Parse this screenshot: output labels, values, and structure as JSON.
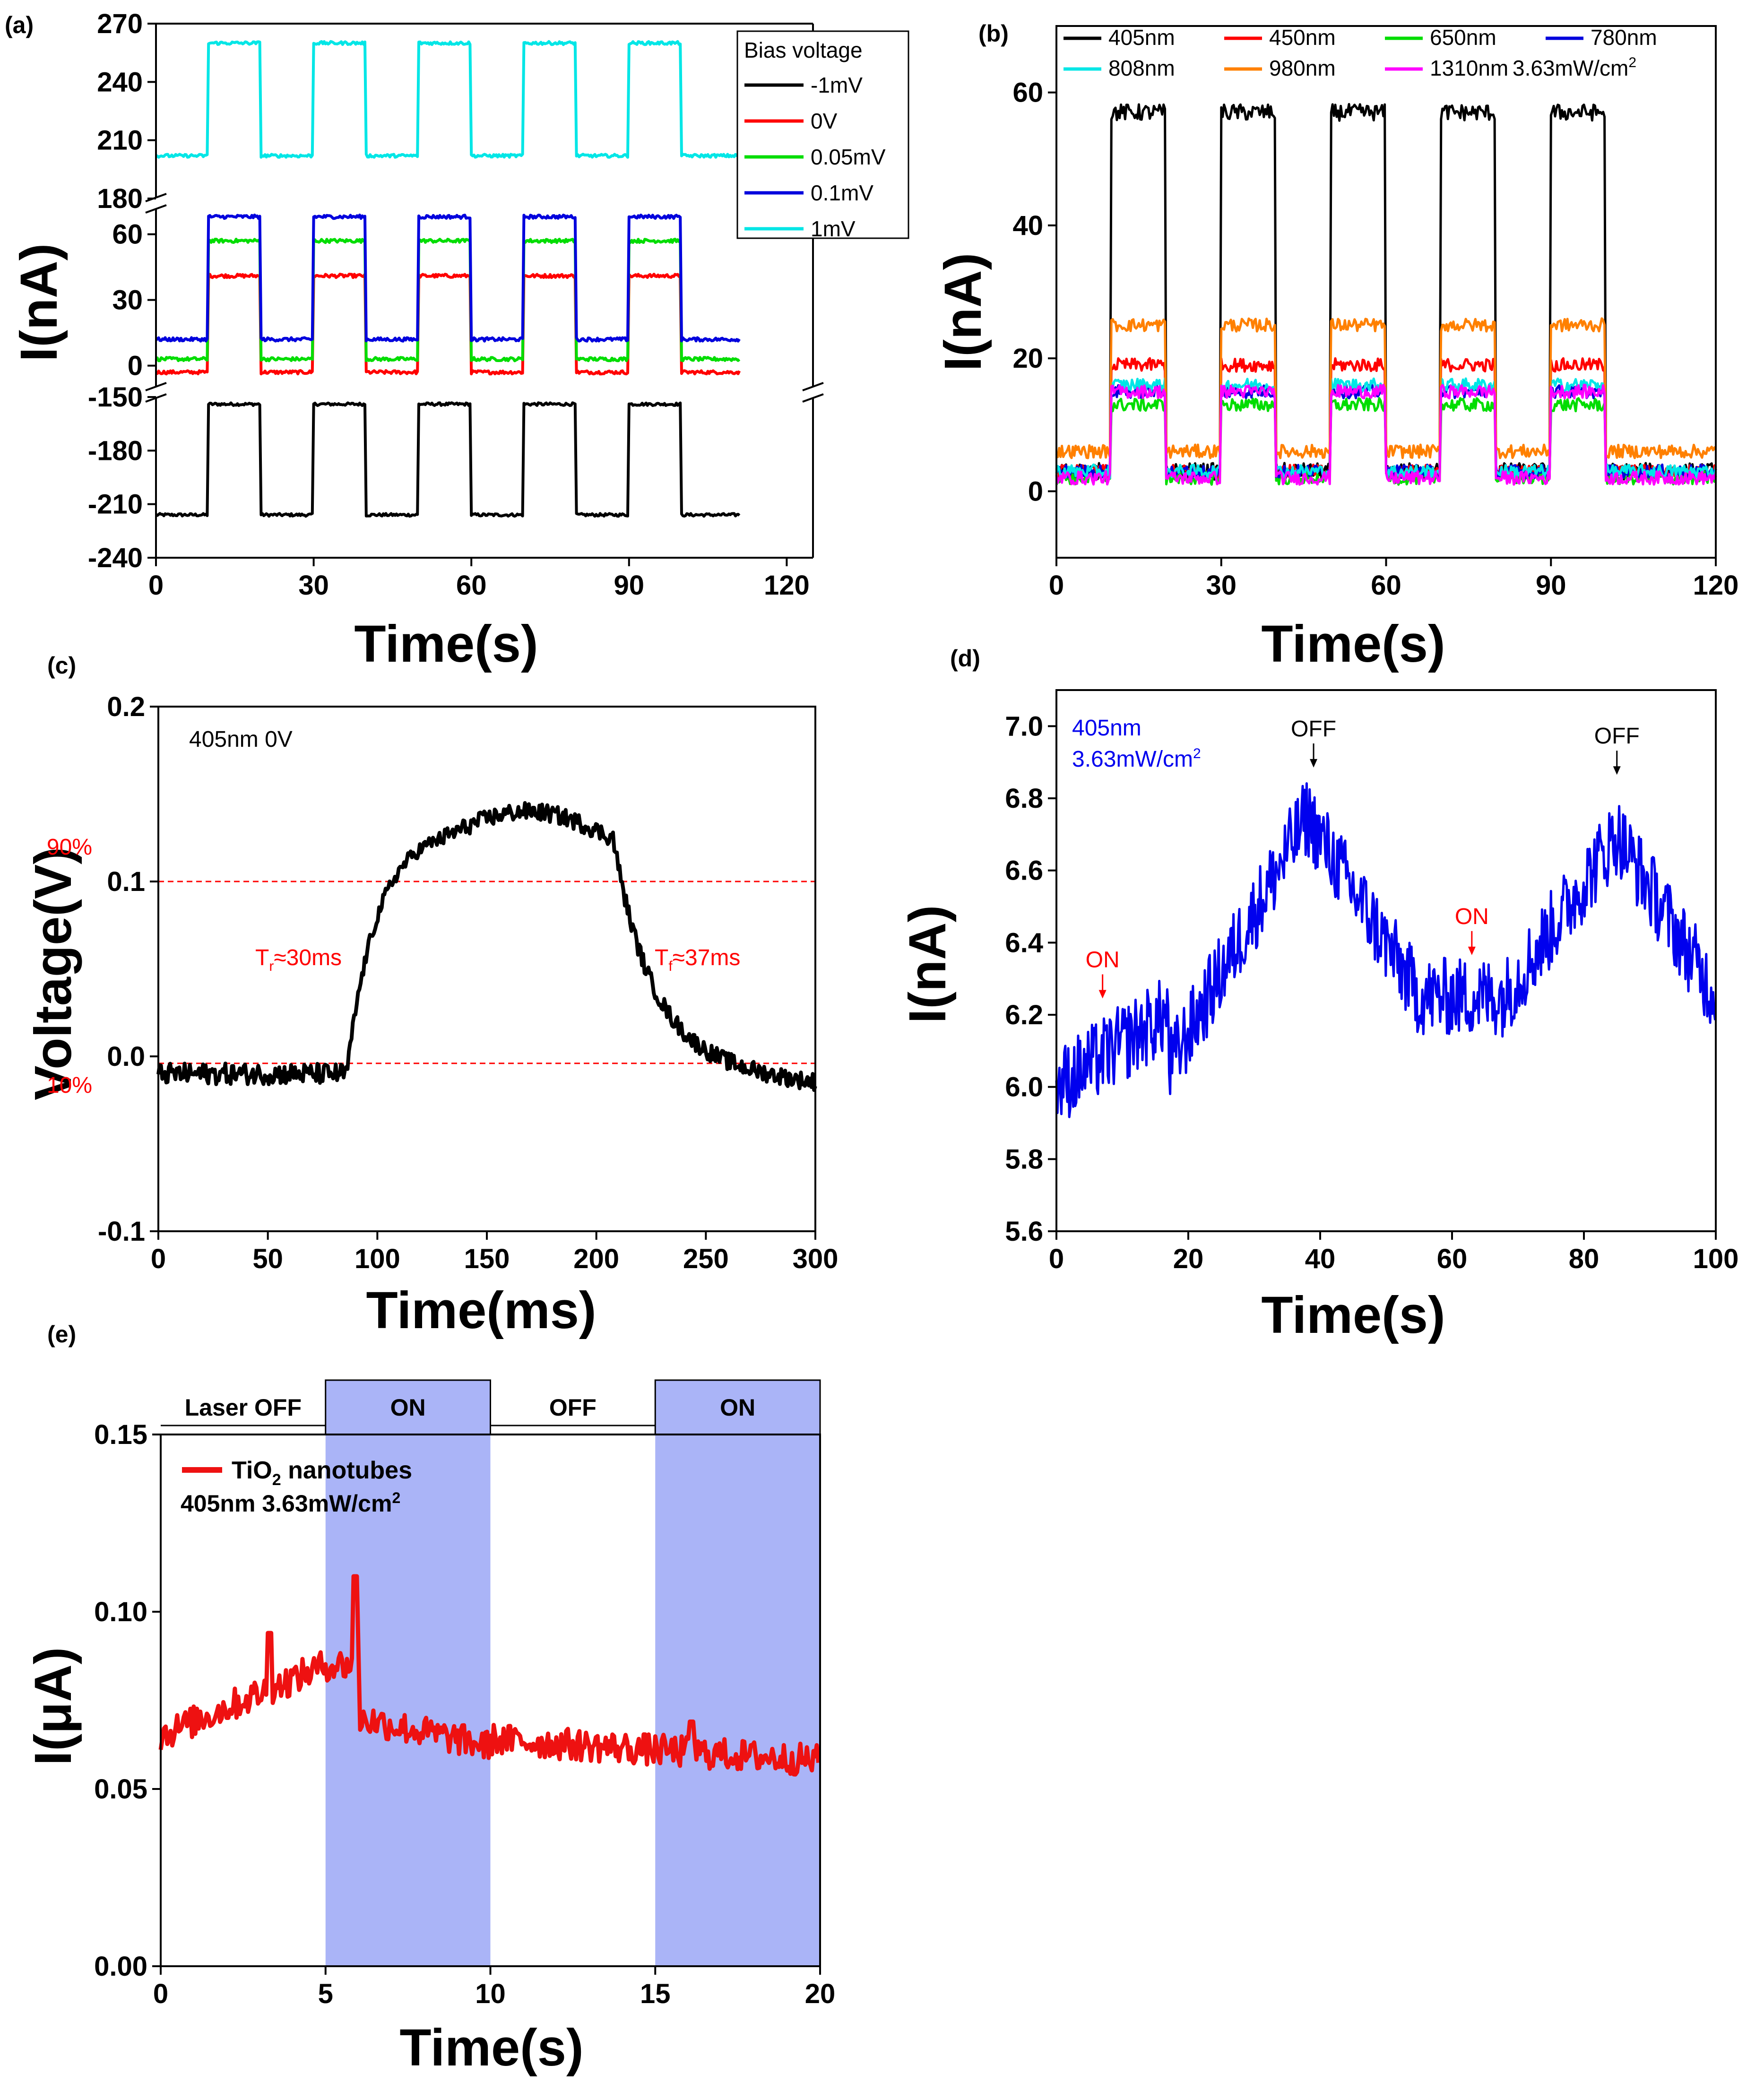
{
  "figure_labels": [
    "(a)",
    "(b)",
    "(c)",
    "(d)",
    "(e)"
  ],
  "chart_data": [
    {
      "id": "a",
      "type": "line",
      "xlabel": "Time(s)",
      "ylabel": "I(nA)",
      "xlim": [
        0,
        125
      ],
      "xticks": [
        0,
        30,
        60,
        90,
        120
      ],
      "segments": [
        {
          "ylim": [
            180,
            270
          ],
          "yticks": [
            180,
            210,
            240,
            270
          ]
        },
        {
          "ylim": [
            -10,
            72
          ],
          "yticks": [
            0,
            30,
            60
          ]
        },
        {
          "ylim": [
            -240,
            -150
          ],
          "yticks": [
            -150,
            -180,
            -210,
            -240
          ]
        }
      ],
      "legend_title": "Bias voltage",
      "pulse": {
        "on_start": [
          10,
          30,
          50,
          70,
          90
        ],
        "width": 10,
        "end": 111
      },
      "series": [
        {
          "name": "-1mV",
          "color": "#000000",
          "segment": 2,
          "off": -216,
          "on": -154
        },
        {
          "name": "0V",
          "color": "#ff0000",
          "segment": 1,
          "off": -3,
          "on": 41
        },
        {
          "name": "0.05mV",
          "color": "#00dd00",
          "segment": 1,
          "off": 3,
          "on": 57
        },
        {
          "name": "0.1mV",
          "color": "#0000dd",
          "segment": 1,
          "off": 12,
          "on": 68
        },
        {
          "name": "1mV",
          "color": "#00e6e6",
          "segment": 0,
          "off": 202,
          "on": 260
        }
      ]
    },
    {
      "id": "b",
      "type": "line",
      "xlabel": "Time(s)",
      "ylabel": "I(nA)",
      "xlim": [
        0,
        120
      ],
      "ylim": [
        -10,
        70
      ],
      "xticks": [
        0,
        30,
        60,
        90,
        120
      ],
      "yticks": [
        0,
        20,
        40,
        60
      ],
      "intensity": "3.63mW/cm",
      "intensity_sup": "2",
      "pulse": {
        "on_start": [
          10,
          30,
          50,
          70,
          90
        ],
        "width": 10,
        "end": 120
      },
      "series": [
        {
          "name": "405nm",
          "color": "#000000",
          "off": 3,
          "on": 57
        },
        {
          "name": "450nm",
          "color": "#ff0000",
          "off": 3,
          "on": 19
        },
        {
          "name": "650nm",
          "color": "#00dd00",
          "off": 2,
          "on": 13
        },
        {
          "name": "780nm",
          "color": "#0000dd",
          "off": 3,
          "on": 15
        },
        {
          "name": "808nm",
          "color": "#00e6e6",
          "off": 3,
          "on": 16
        },
        {
          "name": "980nm",
          "color": "#ff8000",
          "off": 6,
          "on": 25
        },
        {
          "name": "1310nm",
          "color": "#ff00ff",
          "off": 2,
          "on": 15
        }
      ]
    },
    {
      "id": "c",
      "type": "line",
      "xlabel": "Time(ms)",
      "ylabel": "Voltage(V)",
      "xlim": [
        0,
        300
      ],
      "ylim": [
        -0.1,
        0.2
      ],
      "xticks": [
        0,
        50,
        100,
        150,
        200,
        250,
        300
      ],
      "yticks": [
        -0.1,
        0.0,
        0.1,
        0.2
      ],
      "tick_labels": [
        "-0.1",
        "0.0",
        "0.1",
        "0.2"
      ],
      "series_color": "#000000",
      "condition": "405nm 0V",
      "line_90": {
        "value": 0.1,
        "label": "90%"
      },
      "line_10": {
        "value": -0.004,
        "label": "10%"
      },
      "rise_label": "T",
      "rise_sub": "r",
      "rise_value": "≈30ms",
      "fall_label": "T",
      "fall_sub": "f",
      "fall_value": "≈37ms"
    },
    {
      "id": "d",
      "type": "line",
      "xlabel": "Time(s)",
      "ylabel": "I(nA)",
      "xlim": [
        0,
        100
      ],
      "ylim": [
        5.6,
        7.1
      ],
      "xticks": [
        0,
        20,
        40,
        60,
        80,
        100
      ],
      "yticks": [
        5.6,
        5.8,
        6.0,
        6.2,
        6.4,
        6.6,
        6.8,
        7.0
      ],
      "tick_labels": [
        "5.6",
        "5.8",
        "6.0",
        "6.2",
        "6.4",
        "6.6",
        "6.8",
        "7.0"
      ],
      "series_color": "#0000ee",
      "info_line1": "405nm",
      "info_line2": "3.63mW/cm",
      "info_sup": "2",
      "markers": [
        {
          "label": "ON",
          "x": 7,
          "color": "#ff0000"
        },
        {
          "label": "OFF",
          "x": 39,
          "color": "#000000"
        },
        {
          "label": "ON",
          "x": 63,
          "color": "#ff0000"
        },
        {
          "label": "OFF",
          "x": 85,
          "color": "#000000"
        }
      ]
    },
    {
      "id": "e",
      "type": "line",
      "xlabel": "Time(s)",
      "ylabel": "I(μA)",
      "xlim": [
        0,
        20
      ],
      "ylim": [
        0,
        0.15
      ],
      "xticks": [
        0,
        5,
        10,
        15,
        20
      ],
      "yticks": [
        0.0,
        0.05,
        0.1,
        0.15
      ],
      "tick_labels": [
        "0.00",
        "0.05",
        "0.10",
        "0.15"
      ],
      "series_color": "#ee1111",
      "shade_color": "#aab4f7",
      "legend_pre": "TiO",
      "legend_sub": "2",
      "legend_post": " nanotubes",
      "info_text": "405nm 3.63mW/cm",
      "info_sup": "2",
      "bands": [
        {
          "label": "Laser OFF",
          "from": 0,
          "to": 5,
          "shaded": false
        },
        {
          "label": "ON",
          "from": 5,
          "to": 10,
          "shaded": true
        },
        {
          "label": "OFF",
          "from": 10,
          "to": 15,
          "shaded": false
        },
        {
          "label": "ON",
          "from": 15,
          "to": 20,
          "shaded": true
        }
      ]
    }
  ]
}
